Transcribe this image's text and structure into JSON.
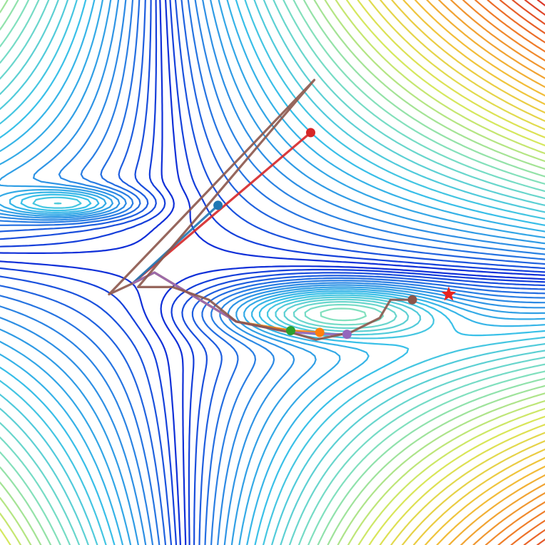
{
  "chart_data": {
    "type": "contour",
    "title": "",
    "xlabel": "",
    "ylabel": "",
    "xlim": [
      -1.5,
      1.5
    ],
    "ylim": [
      -1.5,
      1.5
    ],
    "grid": false,
    "legend": "none",
    "colormap": "jet",
    "colormap_stops": [
      "#0a1fd6",
      "#2a7fe3",
      "#39c0e8",
      "#7fe0c0",
      "#d8e85a",
      "#f2c13a",
      "#ef7a2a",
      "#d7302a"
    ],
    "surface": {
      "description_of_shape": "saddle centered near (-0.55, 0.05) with a deep elongated basin to the lower right",
      "saddle": [
        -0.55,
        0.05
      ],
      "basin_center": [
        0.35,
        -0.22
      ],
      "basin_spread": [
        0.55,
        0.14
      ],
      "upper_left_well": [
        -1.15,
        0.38
      ]
    },
    "minimum_marker": {
      "x": 0.97,
      "y": -0.12,
      "color": "#e8231f",
      "symbol": "star"
    },
    "start_point": {
      "x": -0.77,
      "y": -0.06
    },
    "series": [
      {
        "color": "#d62728",
        "points": [
          [
            -0.77,
            -0.06
          ],
          [
            0.21,
            0.77
          ]
        ]
      },
      {
        "color": "#1f77b4",
        "points": [
          [
            -0.77,
            -0.06
          ],
          [
            -0.3,
            0.37
          ]
        ]
      },
      {
        "color": "#2ca02c",
        "points": [
          [
            -0.77,
            -0.06
          ],
          [
            -0.65,
            0.0
          ],
          [
            -0.45,
            -0.12
          ],
          [
            -0.2,
            -0.27
          ],
          [
            0.1,
            -0.32
          ]
        ]
      },
      {
        "color": "#ff7f0e",
        "points": [
          [
            -0.77,
            -0.06
          ],
          [
            -0.65,
            0.0
          ],
          [
            -0.45,
            -0.12
          ],
          [
            -0.2,
            -0.27
          ],
          [
            0.1,
            -0.32
          ],
          [
            0.26,
            -0.33
          ]
        ]
      },
      {
        "color": "#9467bd",
        "points": [
          [
            -0.77,
            -0.06
          ],
          [
            -0.65,
            0.0
          ],
          [
            -0.45,
            -0.12
          ],
          [
            -0.2,
            -0.27
          ],
          [
            0.1,
            -0.33
          ],
          [
            0.33,
            -0.34
          ],
          [
            0.41,
            -0.34
          ]
        ]
      },
      {
        "color": "#8c564b",
        "points": [
          [
            -0.77,
            -0.06
          ],
          [
            -0.9,
            -0.12
          ],
          [
            0.23,
            1.06
          ],
          [
            -0.74,
            -0.08
          ],
          [
            -0.55,
            -0.08
          ],
          [
            -0.35,
            -0.15
          ],
          [
            -0.2,
            -0.27
          ],
          [
            0.1,
            -0.33
          ],
          [
            0.24,
            -0.37
          ],
          [
            0.43,
            -0.33
          ],
          [
            0.59,
            -0.25
          ],
          [
            0.65,
            -0.15
          ],
          [
            0.77,
            -0.15
          ]
        ]
      }
    ]
  }
}
